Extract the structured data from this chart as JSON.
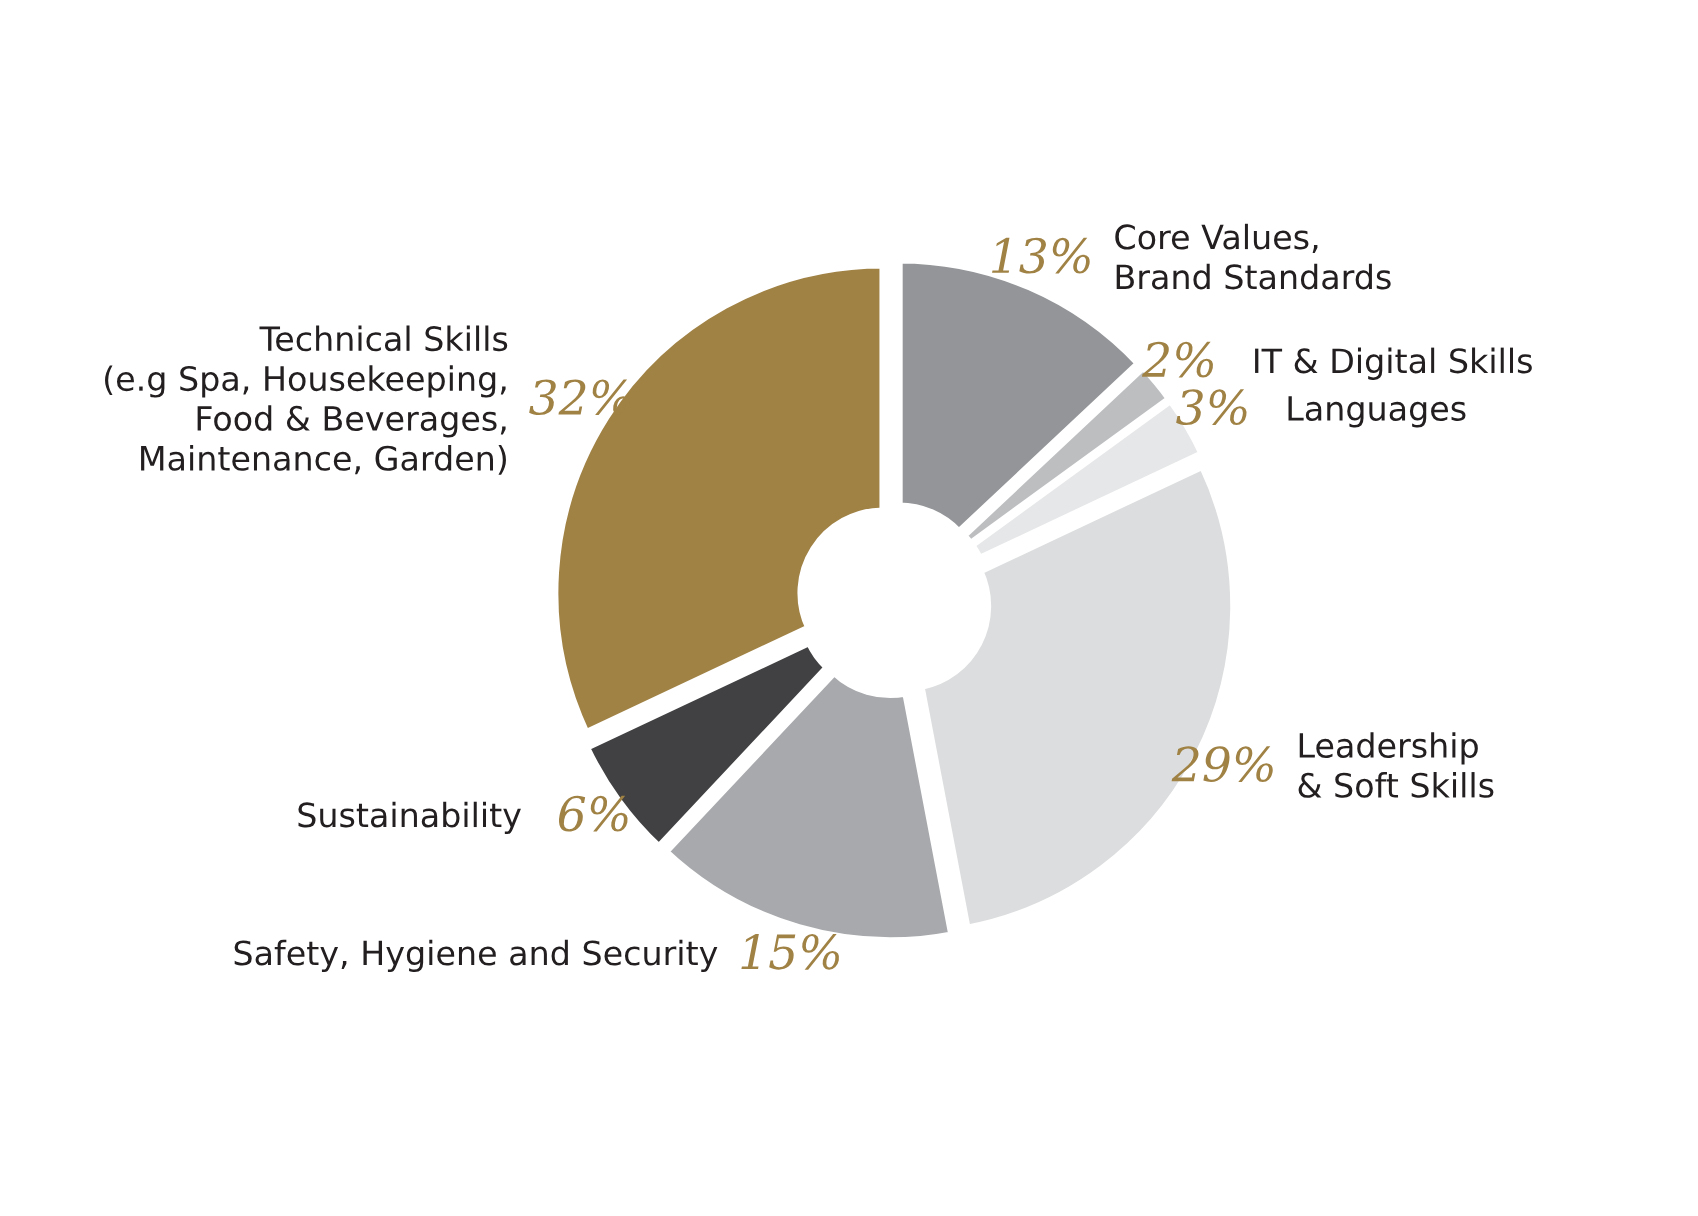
{
  "chart_data": {
    "type": "donut",
    "categories": [
      "Core Values,\nBrand Standards",
      "IT & Digital Skills",
      "Languages",
      "Leadership\n& Soft Skills",
      "Safety, Hygiene and Security",
      "Sustainability",
      "Technical Skills\n(e.g Spa, Housekeeping,\nFood & Beverages,\nMaintenance, Garden)"
    ],
    "values": [
      13,
      2,
      3,
      29,
      15,
      6,
      32
    ],
    "value_labels": [
      "13%",
      "2%",
      "3%",
      "29%",
      "15%",
      "6%",
      "32%"
    ],
    "colors": [
      "#939598",
      "#bcbec0",
      "#e6e7e8",
      "#dcddde",
      "#a7a9ac",
      "#414042",
      "#a08245"
    ],
    "legend": false
  }
}
